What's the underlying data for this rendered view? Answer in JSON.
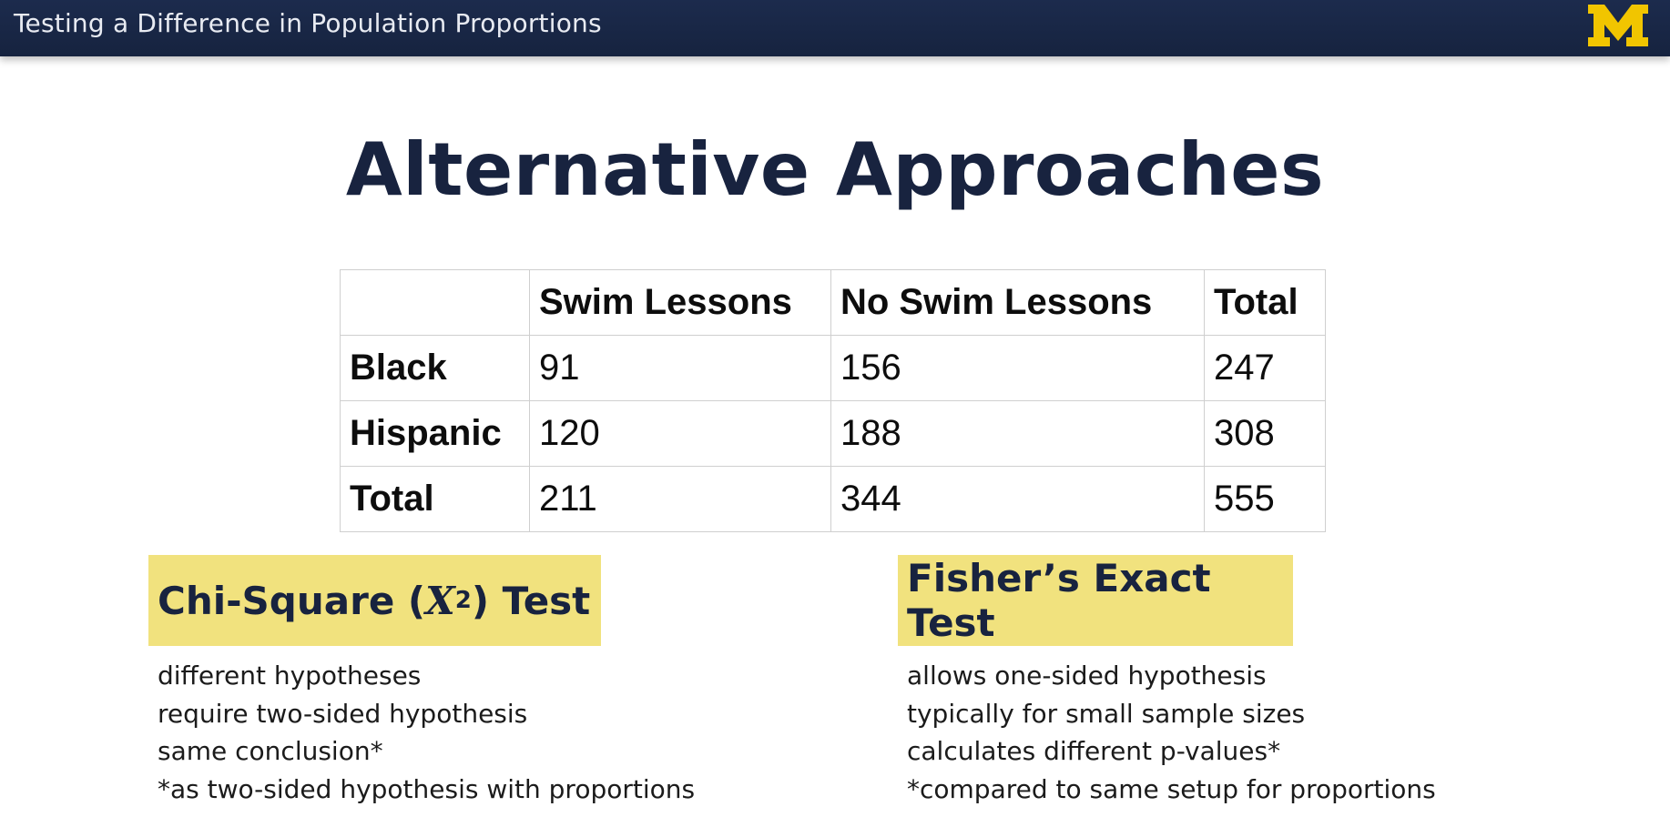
{
  "header": {
    "title": "Testing a Difference in Population Proportions",
    "logo_letter": "M",
    "logo_color": "#f1c500"
  },
  "slide": {
    "title": "Alternative Approaches"
  },
  "table": {
    "columns": [
      "",
      "Swim Lessons",
      "No Swim Lessons",
      "Total"
    ],
    "rows": [
      {
        "label": "Black",
        "values": [
          "91",
          "156",
          "247"
        ]
      },
      {
        "label": "Hispanic",
        "values": [
          "120",
          "188",
          "308"
        ]
      },
      {
        "label": "Total",
        "values": [
          "211",
          "344",
          "555"
        ]
      }
    ]
  },
  "chi_square": {
    "title_prefix": "Chi-Square (",
    "symbol": "X",
    "superscript": "2",
    "title_suffix": ") Test",
    "box_color": "#f1e27e",
    "notes": [
      "different hypotheses",
      "require two-sided hypothesis",
      "same conclusion*",
      "*as two-sided hypothesis with proportions"
    ]
  },
  "fisher": {
    "title": "Fisher’s Exact Test",
    "box_color": "#f1e27e",
    "notes": [
      "allows one-sided hypothesis",
      "typically for small sample sizes",
      "calculates different p-values*",
      "*compared to same setup for proportions"
    ]
  }
}
